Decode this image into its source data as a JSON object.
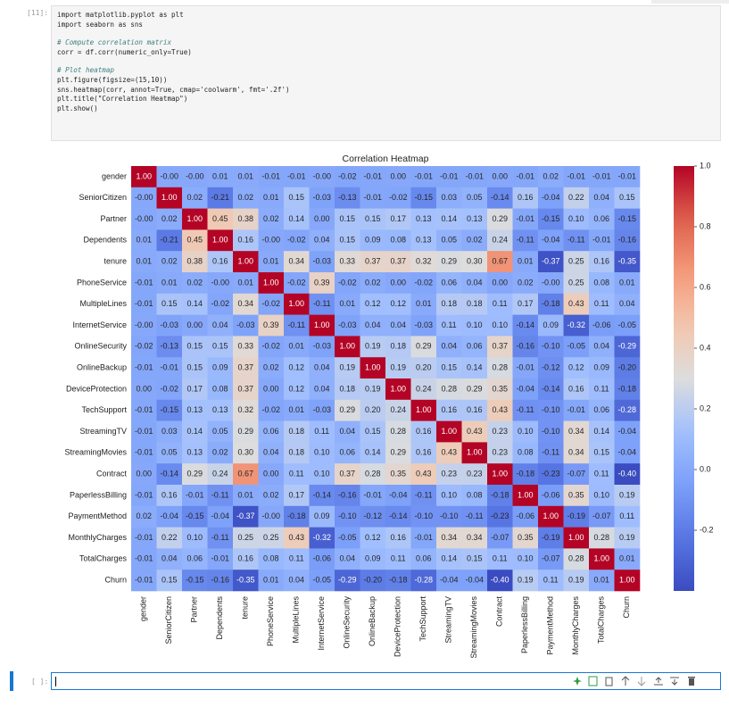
{
  "notebook": {
    "cell_prompt": "[11]:",
    "code_blocks": [
      [
        "import matplotlib.pyplot as plt",
        "import seaborn as sns"
      ],
      [
        "# Compute correlation matrix",
        "corr = df.corr(numeric_only=True)"
      ],
      [
        "# Plot heatmap",
        "plt.figure(figsize=(15,10))",
        "sns.heatmap(corr, annot=True, cmap='coolwarm', fmt='.2f')",
        "plt.title(\"Correlation Heatmap\")",
        "plt.show()"
      ]
    ],
    "empty_prompt": "[ ]:"
  },
  "chart_data": {
    "type": "heatmap",
    "title": "Correlation Heatmap",
    "colormap": "coolwarm",
    "clim": [
      -0.4,
      1
    ],
    "cticks": [
      -0.2,
      {
        "value": 0,
        "label": "0.0"
      },
      0.2,
      0.4,
      0.6,
      0.8,
      {
        "value": 1,
        "label": "1.0"
      }
    ],
    "categories": [
      "gender",
      "SeniorCitizen",
      "Partner",
      "Dependents",
      "tenure",
      "PhoneService",
      "MultipleLines",
      "InternetService",
      "OnlineSecurity",
      "OnlineBackup",
      "DeviceProtection",
      "TechSupport",
      "StreamingTV",
      "StreamingMovies",
      "Contract",
      "PaperlessBilling",
      "PaymentMethod",
      "MonthlyCharges",
      "TotalCharges",
      "Churn"
    ],
    "values": [
      [
        1,
        0,
        0,
        0.01,
        0.01,
        -0.01,
        -0.01,
        0,
        -0.02,
        -0.01,
        0,
        -0.01,
        -0.01,
        -0.01,
        0,
        -0.01,
        0.02,
        -0.01,
        -0.01,
        -0.01
      ],
      [
        0,
        1,
        0.02,
        -0.21,
        0.02,
        0.01,
        0.15,
        -0.03,
        -0.13,
        -0.01,
        -0.02,
        -0.15,
        0.03,
        0.05,
        -0.14,
        0.16,
        -0.04,
        0.22,
        0.04,
        0.15
      ],
      [
        0,
        0.02,
        1,
        0.45,
        0.38,
        0.02,
        0.14,
        0,
        0.15,
        0.15,
        0.17,
        0.13,
        0.14,
        0.13,
        0.29,
        -0.01,
        -0.15,
        0.1,
        0.06,
        -0.15
      ],
      [
        0.01,
        -0.21,
        0.45,
        1,
        0.16,
        0,
        -0.02,
        0.04,
        0.15,
        0.09,
        0.08,
        0.13,
        0.05,
        0.02,
        0.24,
        -0.11,
        -0.04,
        -0.11,
        -0.01,
        -0.16
      ],
      [
        0.01,
        0.02,
        0.38,
        0.16,
        1,
        0.01,
        0.34,
        -0.03,
        0.33,
        0.37,
        0.37,
        0.32,
        0.29,
        0.3,
        0.67,
        0.01,
        -0.37,
        0.25,
        0.16,
        -0.35
      ],
      [
        -0.01,
        0.01,
        0.02,
        0,
        0.01,
        1,
        -0.02,
        0.39,
        -0.02,
        0.02,
        0,
        -0.02,
        0.06,
        0.04,
        0,
        0.02,
        0,
        0.25,
        0.08,
        0.01
      ],
      [
        -0.01,
        0.15,
        0.14,
        -0.02,
        0.34,
        -0.02,
        1,
        -0.11,
        0.01,
        0.12,
        0.12,
        0.01,
        0.18,
        0.18,
        0.11,
        0.17,
        -0.18,
        0.43,
        0.11,
        0.04
      ],
      [
        0,
        -0.03,
        0,
        0.04,
        -0.03,
        0.39,
        -0.11,
        1,
        -0.03,
        0.04,
        0.04,
        -0.03,
        0.11,
        0.1,
        0.1,
        -0.14,
        0.09,
        -0.32,
        -0.06,
        -0.05
      ],
      [
        -0.02,
        -0.13,
        0.15,
        0.15,
        0.33,
        -0.02,
        0.01,
        -0.03,
        1,
        0.19,
        0.18,
        0.29,
        0.04,
        0.06,
        0.37,
        -0.16,
        -0.1,
        -0.05,
        0.04,
        -0.29
      ],
      [
        -0.01,
        -0.01,
        0.15,
        0.09,
        0.37,
        0.02,
        0.12,
        0.04,
        0.19,
        1,
        0.19,
        0.2,
        0.15,
        0.14,
        0.28,
        -0.01,
        -0.12,
        0.12,
        0.09,
        -0.2
      ],
      [
        0,
        -0.02,
        0.17,
        0.08,
        0.37,
        0,
        0.12,
        0.04,
        0.18,
        0.19,
        1,
        0.24,
        0.28,
        0.29,
        0.35,
        -0.04,
        -0.14,
        0.16,
        0.11,
        -0.18
      ],
      [
        -0.01,
        -0.15,
        0.13,
        0.13,
        0.32,
        -0.02,
        0.01,
        -0.03,
        0.29,
        0.2,
        0.24,
        1,
        0.16,
        0.16,
        0.43,
        -0.11,
        -0.1,
        -0.01,
        0.06,
        -0.28
      ],
      [
        -0.01,
        0.03,
        0.14,
        0.05,
        0.29,
        0.06,
        0.18,
        0.11,
        0.04,
        0.15,
        0.28,
        0.16,
        1,
        0.43,
        0.23,
        0.1,
        -0.1,
        0.34,
        0.14,
        -0.04
      ],
      [
        -0.01,
        0.05,
        0.13,
        0.02,
        0.3,
        0.04,
        0.18,
        0.1,
        0.06,
        0.14,
        0.29,
        0.16,
        0.43,
        1,
        0.23,
        0.08,
        -0.11,
        0.34,
        0.15,
        -0.04
      ],
      [
        0,
        -0.14,
        0.29,
        0.24,
        0.67,
        0,
        0.11,
        0.1,
        0.37,
        0.28,
        0.35,
        0.43,
        0.23,
        0.23,
        1,
        -0.18,
        -0.23,
        -0.07,
        0.11,
        -0.4
      ],
      [
        -0.01,
        0.16,
        -0.01,
        -0.11,
        0.01,
        0.02,
        0.17,
        -0.14,
        -0.16,
        -0.01,
        -0.04,
        -0.11,
        0.1,
        0.08,
        -0.18,
        1,
        -0.06,
        0.35,
        0.1,
        0.19
      ],
      [
        0.02,
        -0.04,
        -0.15,
        -0.04,
        -0.37,
        0,
        -0.18,
        0.09,
        -0.1,
        -0.12,
        -0.14,
        -0.1,
        -0.1,
        -0.11,
        -0.23,
        -0.06,
        1,
        -0.19,
        -0.07,
        0.11
      ],
      [
        -0.01,
        0.22,
        0.1,
        -0.11,
        0.25,
        0.25,
        0.43,
        -0.32,
        -0.05,
        0.12,
        0.16,
        -0.01,
        0.34,
        0.34,
        -0.07,
        0.35,
        -0.19,
        1,
        0.28,
        0.19
      ],
      [
        -0.01,
        0.04,
        0.06,
        -0.01,
        0.16,
        0.08,
        0.11,
        -0.06,
        0.04,
        0.09,
        0.11,
        0.06,
        0.14,
        0.15,
        0.11,
        0.1,
        -0.07,
        0.28,
        1,
        0.01
      ],
      [
        -0.01,
        0.15,
        -0.15,
        -0.16,
        -0.35,
        0.01,
        0.04,
        -0.05,
        -0.29,
        -0.2,
        -0.18,
        -0.28,
        -0.04,
        -0.04,
        -0.4,
        0.19,
        0.11,
        0.19,
        0.01,
        1
      ]
    ],
    "value_labels": [
      [
        "1.00",
        "-0.00",
        "-0.00",
        "0.01",
        "0.01",
        "-0.01",
        "-0.01",
        "-0.00",
        "-0.02",
        "-0.01",
        "0.00",
        "-0.01",
        "-0.01",
        "-0.01",
        "0.00",
        "-0.01",
        "0.02",
        "-0.01",
        "-0.01",
        "-0.01"
      ],
      [
        "-0.00",
        "1.00",
        "0.02",
        "-0.21",
        "0.02",
        "0.01",
        "0.15",
        "-0.03",
        "-0.13",
        "-0.01",
        "-0.02",
        "-0.15",
        "0.03",
        "0.05",
        "-0.14",
        "0.16",
        "-0.04",
        "0.22",
        "0.04",
        "0.15"
      ],
      [
        "-0.00",
        "0.02",
        "1.00",
        "0.45",
        "0.38",
        "0.02",
        "0.14",
        "0.00",
        "0.15",
        "0.15",
        "0.17",
        "0.13",
        "0.14",
        "0.13",
        "0.29",
        "-0.01",
        "-0.15",
        "0.10",
        "0.06",
        "-0.15"
      ],
      [
        "0.01",
        "-0.21",
        "0.45",
        "1.00",
        "0.16",
        "-0.00",
        "-0.02",
        "0.04",
        "0.15",
        "0.09",
        "0.08",
        "0.13",
        "0.05",
        "0.02",
        "0.24",
        "-0.11",
        "-0.04",
        "-0.11",
        "-0.01",
        "-0.16"
      ],
      [
        "0.01",
        "0.02",
        "0.38",
        "0.16",
        "1.00",
        "0.01",
        "0.34",
        "-0.03",
        "0.33",
        "0.37",
        "0.37",
        "0.32",
        "0.29",
        "0.30",
        "0.67",
        "0.01",
        "-0.37",
        "0.25",
        "0.16",
        "-0.35"
      ],
      [
        "-0.01",
        "0.01",
        "0.02",
        "-0.00",
        "0.01",
        "1.00",
        "-0.02",
        "0.39",
        "-0.02",
        "0.02",
        "0.00",
        "-0.02",
        "0.06",
        "0.04",
        "0.00",
        "0.02",
        "-0.00",
        "0.25",
        "0.08",
        "0.01"
      ],
      [
        "-0.01",
        "0.15",
        "0.14",
        "-0.02",
        "0.34",
        "-0.02",
        "1.00",
        "-0.11",
        "0.01",
        "0.12",
        "0.12",
        "0.01",
        "0.18",
        "0.18",
        "0.11",
        "0.17",
        "-0.18",
        "0.43",
        "0.11",
        "0.04"
      ],
      [
        "-0.00",
        "-0.03",
        "0.00",
        "0.04",
        "-0.03",
        "0.39",
        "-0.11",
        "1.00",
        "-0.03",
        "0.04",
        "0.04",
        "-0.03",
        "0.11",
        "0.10",
        "0.10",
        "-0.14",
        "0.09",
        "-0.32",
        "-0.06",
        "-0.05"
      ],
      [
        "-0.02",
        "-0.13",
        "0.15",
        "0.15",
        "0.33",
        "-0.02",
        "0.01",
        "-0.03",
        "1.00",
        "0.19",
        "0.18",
        "0.29",
        "0.04",
        "0.06",
        "0.37",
        "-0.16",
        "-0.10",
        "-0.05",
        "0.04",
        "-0.29"
      ],
      [
        "-0.01",
        "-0.01",
        "0.15",
        "0.09",
        "0.37",
        "0.02",
        "0.12",
        "0.04",
        "0.19",
        "1.00",
        "0.19",
        "0.20",
        "0.15",
        "0.14",
        "0.28",
        "-0.01",
        "-0.12",
        "0.12",
        "0.09",
        "-0.20"
      ],
      [
        "0.00",
        "-0.02",
        "0.17",
        "0.08",
        "0.37",
        "0.00",
        "0.12",
        "0.04",
        "0.18",
        "0.19",
        "1.00",
        "0.24",
        "0.28",
        "0.29",
        "0.35",
        "-0.04",
        "-0.14",
        "0.16",
        "0.11",
        "-0.18"
      ],
      [
        "-0.01",
        "-0.15",
        "0.13",
        "0.13",
        "0.32",
        "-0.02",
        "0.01",
        "-0.03",
        "0.29",
        "0.20",
        "0.24",
        "1.00",
        "0.16",
        "0.16",
        "0.43",
        "-0.11",
        "-0.10",
        "-0.01",
        "0.06",
        "-0.28"
      ],
      [
        "-0.01",
        "0.03",
        "0.14",
        "0.05",
        "0.29",
        "0.06",
        "0.18",
        "0.11",
        "0.04",
        "0.15",
        "0.28",
        "0.16",
        "1.00",
        "0.43",
        "0.23",
        "0.10",
        "-0.10",
        "0.34",
        "0.14",
        "-0.04"
      ],
      [
        "-0.01",
        "0.05",
        "0.13",
        "0.02",
        "0.30",
        "0.04",
        "0.18",
        "0.10",
        "0.06",
        "0.14",
        "0.29",
        "0.16",
        "0.43",
        "1.00",
        "0.23",
        "0.08",
        "-0.11",
        "0.34",
        "0.15",
        "-0.04"
      ],
      [
        "0.00",
        "-0.14",
        "0.29",
        "0.24",
        "0.67",
        "0.00",
        "0.11",
        "0.10",
        "0.37",
        "0.28",
        "0.35",
        "0.43",
        "0.23",
        "0.23",
        "1.00",
        "-0.18",
        "-0.23",
        "-0.07",
        "0.11",
        "-0.40"
      ],
      [
        "-0.01",
        "0.16",
        "-0.01",
        "-0.11",
        "0.01",
        "0.02",
        "0.17",
        "-0.14",
        "-0.16",
        "-0.01",
        "-0.04",
        "-0.11",
        "0.10",
        "0.08",
        "-0.18",
        "1.00",
        "-0.06",
        "0.35",
        "0.10",
        "0.19"
      ],
      [
        "0.02",
        "-0.04",
        "-0.15",
        "-0.04",
        "-0.37",
        "-0.00",
        "-0.18",
        "0.09",
        "-0.10",
        "-0.12",
        "-0.14",
        "-0.10",
        "-0.10",
        "-0.11",
        "-0.23",
        "-0.06",
        "1.00",
        "-0.19",
        "-0.07",
        "0.11"
      ],
      [
        "-0.01",
        "0.22",
        "0.10",
        "-0.11",
        "0.25",
        "0.25",
        "0.43",
        "-0.32",
        "-0.05",
        "0.12",
        "0.16",
        "-0.01",
        "0.34",
        "0.34",
        "-0.07",
        "0.35",
        "-0.19",
        "1.00",
        "0.28",
        "0.19"
      ],
      [
        "-0.01",
        "0.04",
        "0.06",
        "-0.01",
        "0.16",
        "0.08",
        "0.11",
        "-0.06",
        "0.04",
        "0.09",
        "0.11",
        "0.06",
        "0.14",
        "0.15",
        "0.11",
        "0.10",
        "-0.07",
        "0.28",
        "1.00",
        "0.01"
      ],
      [
        "-0.01",
        "0.15",
        "-0.15",
        "-0.16",
        "-0.35",
        "0.01",
        "0.04",
        "-0.05",
        "-0.29",
        "-0.20",
        "-0.18",
        "-0.28",
        "-0.04",
        "-0.04",
        "-0.40",
        "0.19",
        "0.11",
        "0.19",
        "0.01",
        "1.00"
      ]
    ]
  }
}
